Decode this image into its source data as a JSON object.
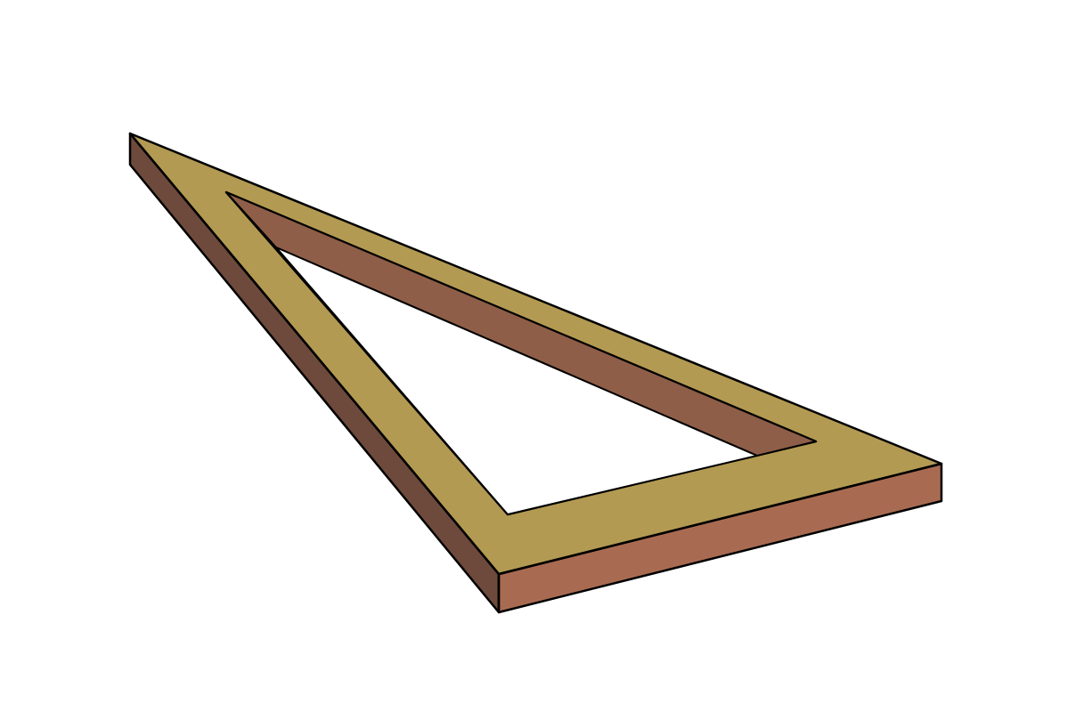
{
  "figure": {
    "subject": "triangular-frame",
    "colors": {
      "background": "#ffffff",
      "top_face": "#b39a52",
      "front_face": "#a86b52",
      "left_face": "#6e4a3c",
      "inner_wall": "#8f5e48",
      "outline": "#000000"
    }
  }
}
